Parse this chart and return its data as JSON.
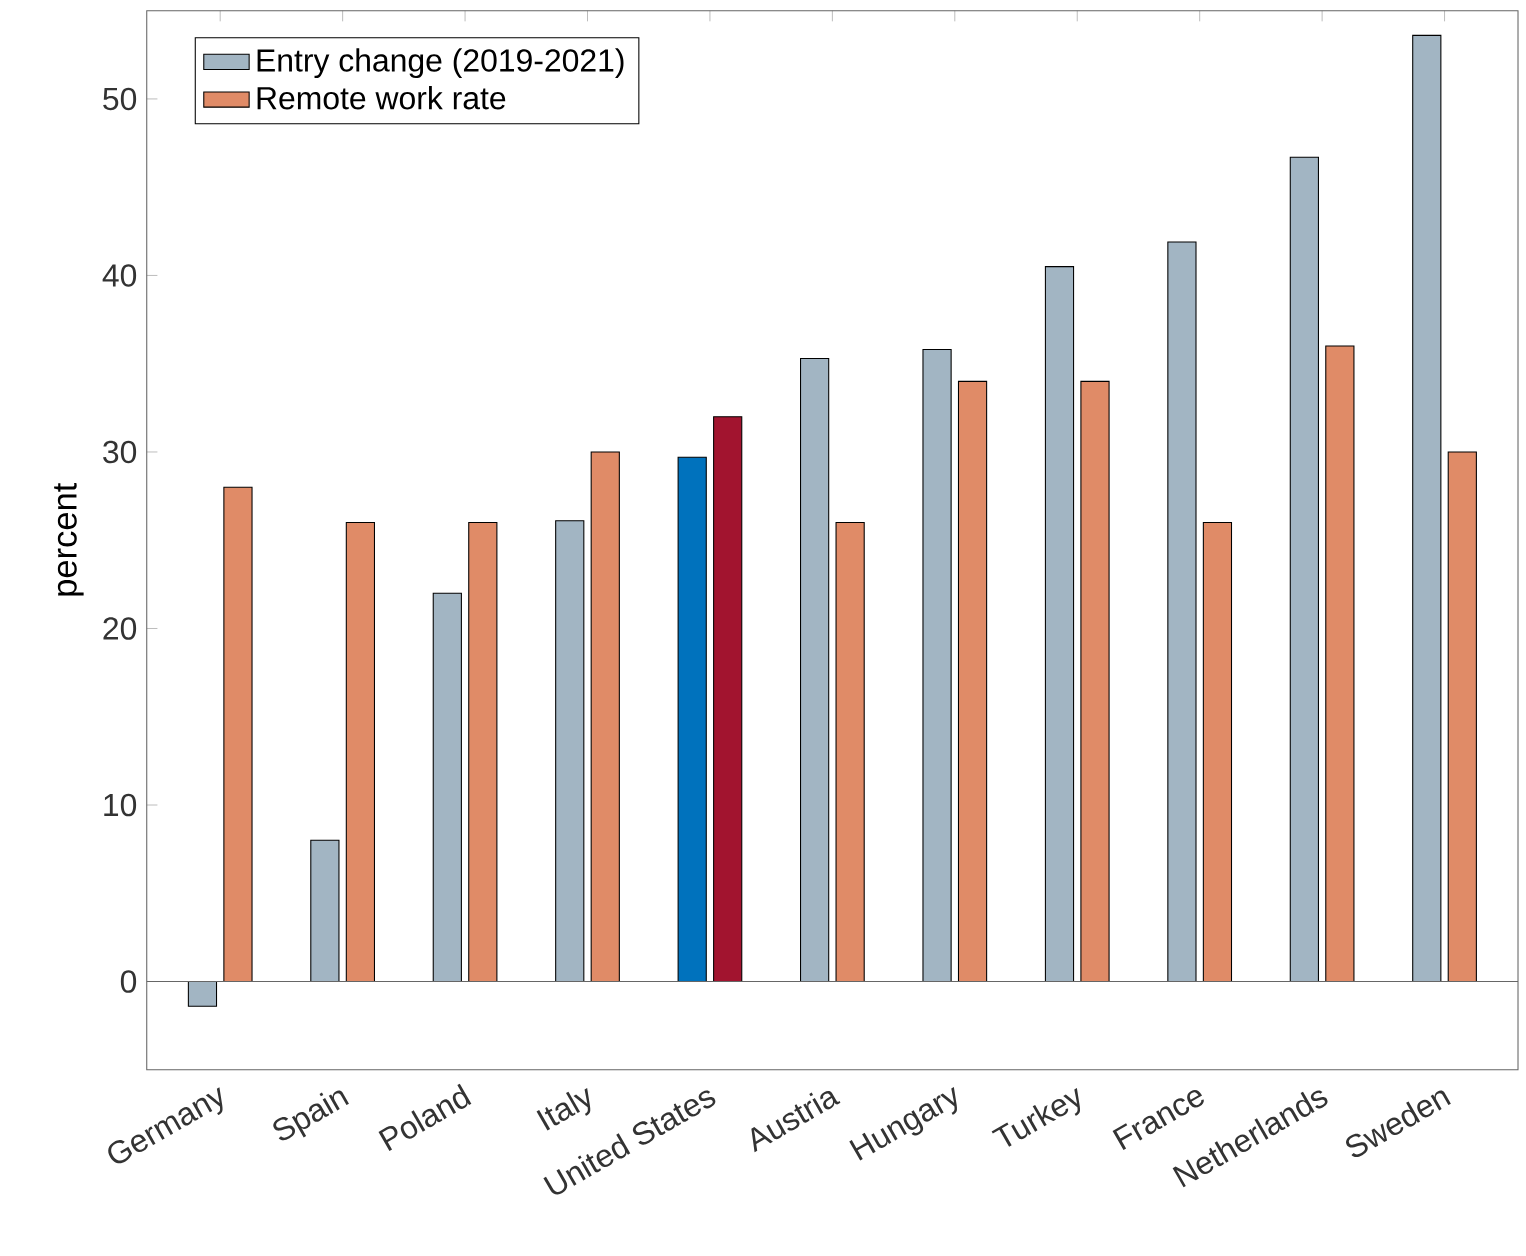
{
  "chart_data": {
    "type": "bar",
    "ylabel": "percent",
    "categories": [
      "Germany",
      "Spain",
      "Poland",
      "Italy",
      "United States",
      "Austria",
      "Hungary",
      "Turkey",
      "France",
      "Netherlands",
      "Sweden"
    ],
    "series": [
      {
        "name": "Entry change (2019-2021)",
        "color": "#a2b5c3",
        "colors": [
          "#a2b5c3",
          "#a2b5c3",
          "#a2b5c3",
          "#a2b5c3",
          "#0072bd",
          "#a2b5c3",
          "#a2b5c3",
          "#a2b5c3",
          "#a2b5c3",
          "#a2b5c3",
          "#a2b5c3"
        ],
        "values": [
          -1.4,
          8.0,
          22.0,
          26.1,
          29.7,
          35.3,
          35.8,
          40.5,
          41.9,
          46.7,
          53.6
        ]
      },
      {
        "name": "Remote work rate",
        "color": "#e08b67",
        "colors": [
          "#e08b67",
          "#e08b67",
          "#e08b67",
          "#e08b67",
          "#a2142f",
          "#e08b67",
          "#e08b67",
          "#e08b67",
          "#e08b67",
          "#e08b67",
          "#e08b67"
        ],
        "values": [
          28,
          26,
          26,
          30,
          32,
          26,
          34,
          34,
          26,
          36,
          30
        ]
      }
    ],
    "ref_lines": [
      {
        "axis": "y",
        "value": 0
      }
    ],
    "ylim": [
      -5,
      55
    ],
    "yticks": [
      0,
      10,
      20,
      30,
      40,
      50
    ],
    "grid": false,
    "legend": "top left"
  }
}
